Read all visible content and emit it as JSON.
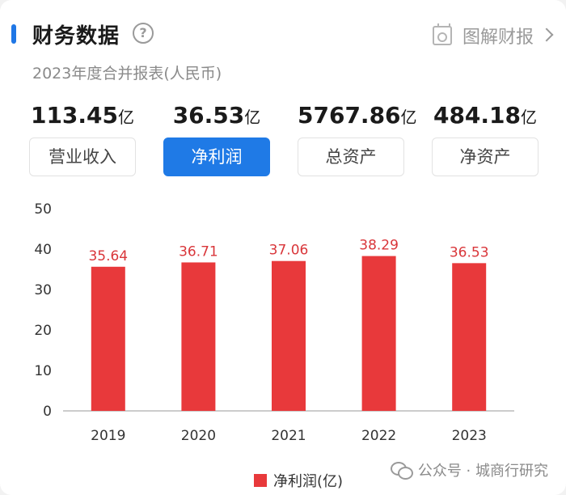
{
  "header": {
    "title": "财务数据",
    "help_icon": "question-circle-icon",
    "help_symbol": "?",
    "report_link_label": "图解财报",
    "report_icon": "camera-icon"
  },
  "subtitle": "2023年度合并报表(人民币)",
  "metrics": [
    {
      "value": "113.45",
      "unit": "亿",
      "label": "营业收入",
      "active": false
    },
    {
      "value": "36.53",
      "unit": "亿",
      "label": "净利润",
      "active": true
    },
    {
      "value": "5767.86",
      "unit": "亿",
      "label": "总资产",
      "active": false
    },
    {
      "value": "484.18",
      "unit": "亿",
      "label": "净资产",
      "active": false
    }
  ],
  "colors": {
    "accent": "#1f7ae6",
    "bar": "#e8393b",
    "bar_label": "#d9363a"
  },
  "chart_data": {
    "type": "bar",
    "categories": [
      "2019",
      "2020",
      "2021",
      "2022",
      "2023"
    ],
    "series": [
      {
        "name": "净利润(亿)",
        "values": [
          35.64,
          36.71,
          37.06,
          38.29,
          36.53
        ]
      }
    ],
    "data_labels": [
      "35.64",
      "36.71",
      "37.06",
      "38.29",
      "36.53"
    ],
    "y_ticks": [
      0,
      10,
      20,
      30,
      40,
      50
    ],
    "ylim": [
      0,
      50
    ],
    "grid": false,
    "legend_position": "bottom"
  },
  "watermark": {
    "text": "公众号 · 城商行研究",
    "icon": "wechat-icon"
  }
}
